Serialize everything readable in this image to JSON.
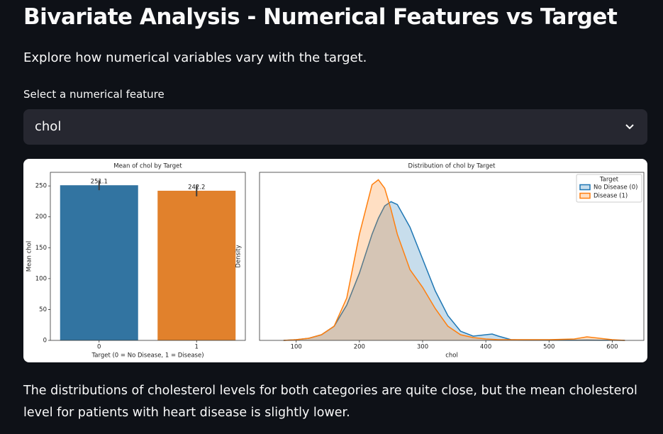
{
  "title": "Bivariate Analysis - Numerical Features vs Target",
  "subtitle": "Explore how numerical variables vary with the target.",
  "select_label": "Select a numerical feature",
  "select_value": "chol",
  "chart_data": [
    {
      "type": "bar",
      "title": "Mean of chol by Target",
      "categories": [
        "0",
        "1"
      ],
      "values": [
        251.1,
        242.2
      ],
      "errors": [
        8,
        9
      ],
      "colors": [
        "#3274a1",
        "#e1812c"
      ],
      "xlabel": "Target (0 = No Disease, 1 = Disease)",
      "ylabel": "Mean chol",
      "ylim": [
        0,
        272
      ],
      "yticks": [
        0,
        50,
        100,
        150,
        200,
        250
      ]
    },
    {
      "type": "area",
      "title": "Distribution of chol by Target",
      "xlabel": "chol",
      "ylabel": "Density",
      "x": [
        80,
        100,
        120,
        140,
        160,
        180,
        200,
        220,
        230,
        240,
        250,
        260,
        280,
        300,
        320,
        340,
        360,
        380,
        400,
        410,
        420,
        440,
        460,
        500,
        540,
        560,
        580,
        600,
        620
      ],
      "series": [
        {
          "name": "No Disease (0)",
          "color": "#1f77b4",
          "values": [
            0,
            4e-05,
            0.00012,
            0.00032,
            0.0008,
            0.002,
            0.0038,
            0.006,
            0.0069,
            0.0076,
            0.00784,
            0.00768,
            0.0064,
            0.0046,
            0.0028,
            0.0014,
            0.00052,
            0.00024,
            0.00032,
            0.00036,
            0.00024,
            4e-05,
            2e-05,
            1e-05,
            1e-05,
            2e-05,
            1e-05,
            1e-05,
            0
          ]
        },
        {
          "name": "Disease (1)",
          "color": "#ff7f0e",
          "values": [
            0,
            4e-05,
            0.00012,
            0.00032,
            0.0008,
            0.0024,
            0.006,
            0.0088,
            0.00908,
            0.0086,
            0.0074,
            0.006,
            0.004,
            0.003,
            0.0018,
            0.0008,
            0.00032,
            0.00016,
            8e-05,
            6e-05,
            4e-05,
            4e-05,
            4e-05,
            4e-05,
            8e-05,
            0.0002,
            0.00012,
            4e-05,
            0
          ]
        }
      ],
      "legend_title": "Target",
      "legend": "upper right",
      "xlim": [
        42,
        650
      ],
      "xticks": [
        100,
        200,
        300,
        400,
        500,
        600
      ],
      "ylim": [
        0,
        0.0095
      ]
    }
  ],
  "caption": "The distributions of cholesterol levels for both categories are quite close, but the mean cholesterol level for patients with heart disease is slightly lower."
}
